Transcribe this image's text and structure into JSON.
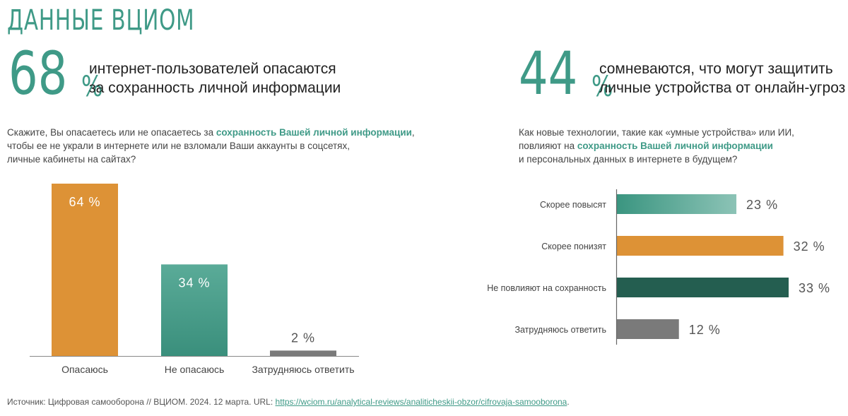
{
  "header": {
    "title": "ДАННЫЕ ВЦИОМ"
  },
  "left_stat": {
    "number": "68",
    "unit": "%",
    "line1": "интернет-пользователей опасаются",
    "line2": "за сохранность личной информации"
  },
  "right_stat": {
    "number": "44",
    "unit": "%",
    "line1": "сомневаются, что могут защитить",
    "line2": "личные устройства от онлайн-угроз"
  },
  "left_question": {
    "part1": "Скажите, Вы опасаетесь или не опасаетесь за ",
    "bold": "сохранность Вашей личной информации",
    "part2": ",",
    "line2": "чтобы ее не украли в интернете или не взломали Ваши аккаунты в соцсетях,",
    "line3": "личные кабинеты на сайтах?"
  },
  "right_question": {
    "line1": "Как новые технологии, такие как «умные устройства» или ИИ,",
    "part2": "повлияют на ",
    "bold": "сохранность Вашей личной информации",
    "line3": "и персональных данных в интернете в будущем?"
  },
  "source": {
    "text": "Источник: Цифровая самооборона // ВЦИОМ. 2024. 12 марта. URL: ",
    "link": "https://wciom.ru/analytical-reviews/analiticheskii-obzor/cifrovaja-samooborona",
    "tail": "."
  },
  "colors": {
    "accent": "#3f9a87",
    "orange": "#dd9236",
    "dark_green": "#245e50",
    "gray": "#7a7a7a"
  },
  "chart_data": [
    {
      "type": "bar",
      "categories": [
        "Опасаюсь",
        "Не опасаюсь",
        "Затрудняюсь ответить"
      ],
      "values": [
        64,
        34,
        2
      ],
      "labels": [
        "64 %",
        "34 %",
        "2 %"
      ],
      "colors": [
        "#dd9236",
        "#3f9a87",
        "#7a7a7a"
      ],
      "ylim": [
        0,
        64
      ]
    },
    {
      "type": "bar",
      "orientation": "horizontal",
      "categories": [
        "Скорее повысят",
        "Скорее понизят",
        "Не повлияют на сохранность",
        "Затрудняюсь ответить"
      ],
      "values": [
        23,
        32,
        33,
        12
      ],
      "labels": [
        "23 %",
        "32 %",
        "33 %",
        "12 %"
      ],
      "colors": [
        "#3f9a87",
        "#dd9236",
        "#245e50",
        "#7a7a7a"
      ],
      "xlim": [
        0,
        33
      ]
    }
  ]
}
